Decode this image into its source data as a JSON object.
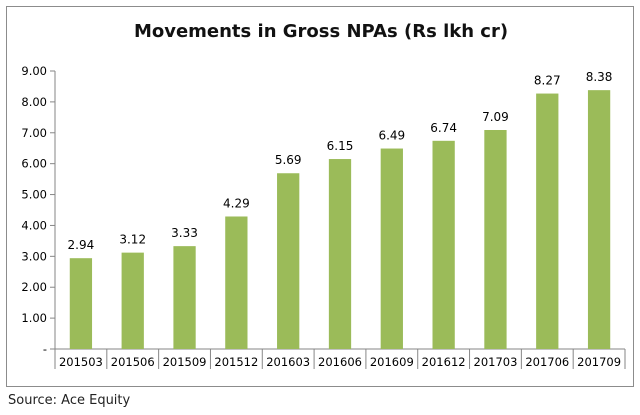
{
  "chart_data": {
    "type": "bar",
    "title": "Movements in Gross NPAs (Rs lkh cr)",
    "categories": [
      "201503",
      "201506",
      "201509",
      "201512",
      "201603",
      "201606",
      "201609",
      "201612",
      "201703",
      "201706",
      "201709"
    ],
    "values": [
      2.94,
      3.12,
      3.33,
      4.29,
      5.69,
      6.15,
      6.49,
      6.74,
      7.09,
      8.27,
      8.38
    ],
    "data_labels": [
      "2.94",
      "3.12",
      "3.33",
      "4.29",
      "5.69",
      "6.15",
      "6.49",
      "6.74",
      "7.09",
      "8.27",
      "8.38"
    ],
    "y_tick_labels": [
      "-",
      "1.00",
      "2.00",
      "3.00",
      "4.00",
      "5.00",
      "6.00",
      "7.00",
      "8.00",
      "9.00"
    ],
    "ylim": [
      0,
      9
    ],
    "xlabel": "",
    "ylabel": "",
    "grid": false,
    "legend": "none",
    "bar_color": "#9bbb59"
  },
  "source": "Source: Ace Equity"
}
